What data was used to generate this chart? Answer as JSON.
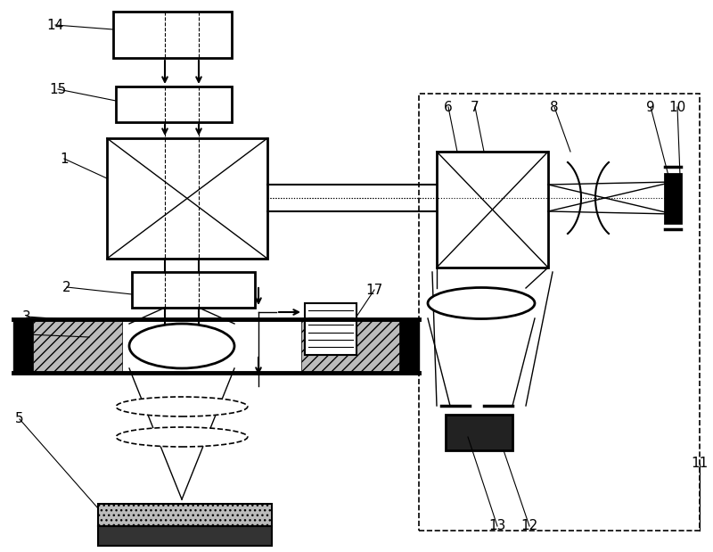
{
  "fig_width": 8.0,
  "fig_height": 6.19,
  "dpi": 100,
  "bg_color": "white",
  "line_color": "black"
}
